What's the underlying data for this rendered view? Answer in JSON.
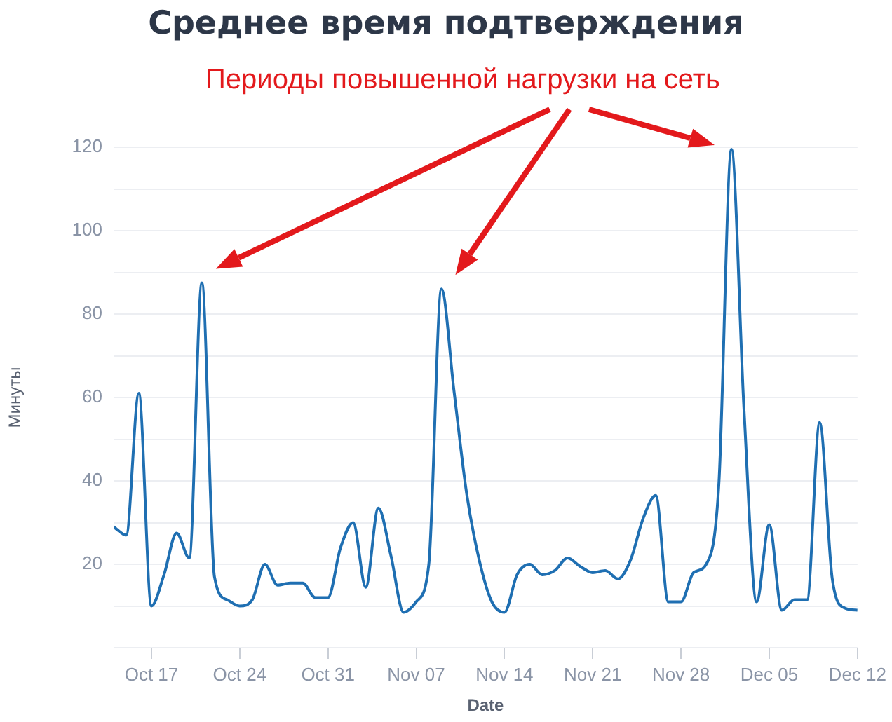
{
  "chart_data": {
    "type": "line",
    "title": "Среднее время подтверждения",
    "xlabel": "Date",
    "ylabel": "Минуты",
    "annotations": [
      "Периоды повышенной нагрузки на сеть"
    ],
    "x": [
      "--10-14",
      "--10-15",
      "--10-16",
      "--10-17",
      "--10-18",
      "--10-19",
      "--10-20",
      "--10-21",
      "--10-22",
      "--10-23",
      "--10-24",
      "--10-25",
      "--10-26",
      "--10-27",
      "--10-28",
      "--10-29",
      "--10-30",
      "--10-31",
      "--11-01",
      "--11-02",
      "--11-03",
      "--11-04",
      "--11-05",
      "--11-06",
      "--11-07",
      "--11-08",
      "--11-09",
      "--11-10",
      "--11-11",
      "--11-12",
      "--11-13",
      "--11-14",
      "--11-15",
      "--11-16",
      "--11-17",
      "--11-18",
      "--11-19",
      "--11-20",
      "--11-21",
      "--11-22",
      "--11-23",
      "--11-24",
      "--11-25",
      "--11-26",
      "--11-27",
      "--11-28",
      "--11-29",
      "--11-30",
      "--12-01",
      "--12-02",
      "--12-03",
      "--12-04",
      "--12-05",
      "--12-06",
      "--12-07",
      "--12-08",
      "--12-09",
      "--12-10",
      "--12-11",
      "--12-12"
    ],
    "series": [
      {
        "color": "#1f6fb2",
        "values": [
          29,
          27,
          61,
          10,
          17.5,
          27.5,
          21.5,
          87.5,
          17,
          11.5,
          10,
          11.5,
          20,
          15,
          15.5,
          15.5,
          12,
          12,
          24,
          30,
          14.5,
          33.5,
          22,
          8.5,
          11,
          20,
          86,
          61.5,
          37,
          21,
          11,
          8.5,
          17.5,
          20,
          17.5,
          18.5,
          21.5,
          19.5,
          18,
          18.5,
          16.5,
          21,
          31,
          36.5,
          11,
          11,
          18,
          20,
          39,
          119.5,
          57,
          11,
          29.5,
          9,
          11.5,
          11.5,
          54,
          16.5,
          9.5,
          9
        ]
      }
    ],
    "xlim": [
      "--10-14",
      "--12-12"
    ],
    "xticks": [
      {
        "value": "--10-17",
        "label": "Oct 17"
      },
      {
        "value": "--10-24",
        "label": "Oct 24"
      },
      {
        "value": "--10-31",
        "label": "Oct 31"
      },
      {
        "value": "--11-07",
        "label": "Nov 07"
      },
      {
        "value": "--11-14",
        "label": "Nov 14"
      },
      {
        "value": "--11-21",
        "label": "Nov 21"
      },
      {
        "value": "--11-28",
        "label": "Nov 28"
      },
      {
        "value": "--12-05",
        "label": "Dec 05"
      },
      {
        "value": "--12-12",
        "label": "Dec 12"
      }
    ],
    "ylim": [
      0,
      120
    ],
    "yticks": [
      {
        "value": 0,
        "label": null
      },
      {
        "value": 10,
        "label": null
      },
      20,
      {
        "value": 30,
        "label": null
      },
      40,
      {
        "value": 50,
        "label": null
      },
      60,
      {
        "value": 70,
        "label": null
      },
      80,
      {
        "value": 90,
        "label": null
      },
      100,
      {
        "value": 110,
        "label": null
      },
      120
    ],
    "grid": "y",
    "legend": false,
    "marker": "none",
    "line_style": "solid"
  }
}
